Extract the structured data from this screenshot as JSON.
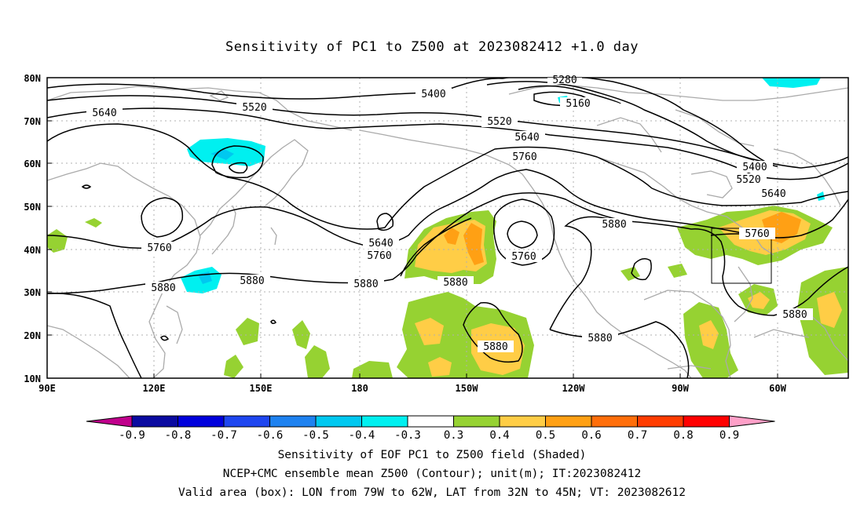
{
  "title": "Sensitivity of PC1 to Z500 at 2023082412 +1.0 day",
  "lat_labels": [
    "80N",
    "70N",
    "60N",
    "50N",
    "40N",
    "30N",
    "20N",
    "10N"
  ],
  "lon_labels": [
    "90E",
    "120E",
    "150E",
    "180",
    "150W",
    "120W",
    "90W",
    "60W"
  ],
  "contour_labels": [
    {
      "text": "5160"
    },
    {
      "text": "5280"
    },
    {
      "text": "5400"
    },
    {
      "text": "5400"
    },
    {
      "text": "5520"
    },
    {
      "text": "5520"
    },
    {
      "text": "5520"
    },
    {
      "text": "5640"
    },
    {
      "text": "5640"
    },
    {
      "text": "5640"
    },
    {
      "text": "5640"
    },
    {
      "text": "5760"
    },
    {
      "text": "5760"
    },
    {
      "text": "5760"
    },
    {
      "text": "5760"
    },
    {
      "text": "5760"
    },
    {
      "text": "5880"
    },
    {
      "text": "5880"
    },
    {
      "text": "5880"
    },
    {
      "text": "5880"
    },
    {
      "text": "5880"
    },
    {
      "text": "5880"
    },
    {
      "text": "5880"
    }
  ],
  "colorbar": {
    "labels": [
      "-0.9",
      "-0.8",
      "-0.7",
      "-0.6",
      "-0.5",
      "-0.4",
      "-0.3",
      "0.3",
      "0.4",
      "0.5",
      "0.6",
      "0.7",
      "0.8",
      "0.9"
    ],
    "colors": [
      "#c0008c",
      "#0a0aa0",
      "#0000dc",
      "#1e46f0",
      "#1e82f0",
      "#00c8f0",
      "#00f0f0",
      "#ffffff",
      "#96d232",
      "#ffcd46",
      "#ffa014",
      "#ff6e0a",
      "#ff3c00",
      "#ff0000",
      "#ffa0c8"
    ]
  },
  "valid_box": {
    "lon_from": "79W",
    "lon_to": "62W",
    "lat_from": "32N",
    "lat_to": "45N"
  },
  "footer": {
    "line1": "Sensitivity of EOF PC1 to Z500 field (Shaded)",
    "line2": "NCEP+CMC ensemble mean Z500 (Contour); unit(m); IT:2023082412",
    "line3": "Valid area (box): LON from 79W to 62W, LAT from 32N to 45N; VT: 2023082612"
  },
  "colors": {
    "positive_low": "#96d232",
    "positive_mid": "#ffcd46",
    "positive_high": "#ffa014",
    "negative": "#00f0f0",
    "coast": "#aaaaaa"
  }
}
